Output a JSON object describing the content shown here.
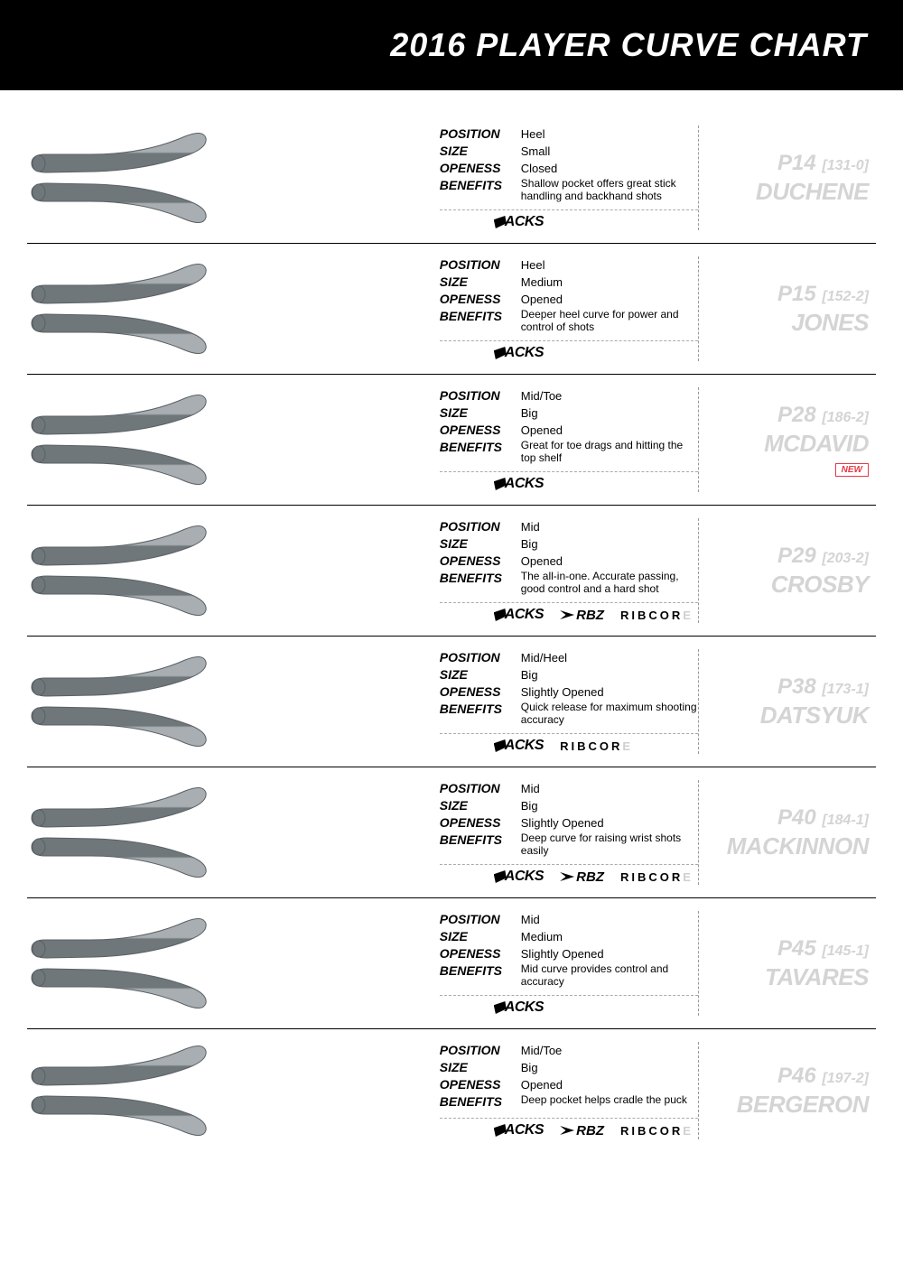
{
  "title": "2016  PLAYER CURVE CHART",
  "labels": {
    "position": "POSITION",
    "size": "SIZE",
    "openess": "OPENESS",
    "benefits": "BENEFITS"
  },
  "brand_names": {
    "tacks": "ACKS",
    "rbz": "RBZ",
    "ribcor": "RIBCOR",
    "ribcor_e": "E"
  },
  "new_text": "NEW",
  "colors": {
    "blade_top": "#a8aeb2",
    "blade_bottom": "#6f777b",
    "blade_stroke": "#5a6164",
    "name_text": "#d4d4d4",
    "new_badge": "#e63946",
    "background": "#ffffff",
    "header_bg": "#000000"
  },
  "curves": [
    {
      "code": "P14",
      "paren": "[131-0]",
      "player": "DUCHENE",
      "new": false,
      "position": "Heel",
      "size": "Small",
      "openess": "Closed",
      "benefits": "Shallow pocket offers great stick handling and backhand shots",
      "brands": [
        "tacks"
      ]
    },
    {
      "code": "P15",
      "paren": "[152-2]",
      "player": "JONES",
      "new": false,
      "position": "Heel",
      "size": "Medium",
      "openess": "Opened",
      "benefits": "Deeper heel curve for power and control of shots",
      "brands": [
        "tacks"
      ]
    },
    {
      "code": "P28",
      "paren": "[186-2]",
      "player": "MCDAVID",
      "new": true,
      "position": "Mid/Toe",
      "size": "Big",
      "openess": "Opened",
      "benefits": "Great for toe drags and hitting the top shelf",
      "brands": [
        "tacks"
      ]
    },
    {
      "code": "P29",
      "paren": "[203-2]",
      "player": "CROSBY",
      "new": false,
      "position": "Mid",
      "size": "Big",
      "openess": "Opened",
      "benefits": "The all-in-one. Accurate passing, good control and a hard shot",
      "brands": [
        "tacks",
        "rbz",
        "ribcor"
      ]
    },
    {
      "code": "P38",
      "paren": "[173-1]",
      "player": "DATSYUK",
      "new": false,
      "position": "Mid/Heel",
      "size": "Big",
      "openess": "Slightly Opened",
      "benefits": "Quick release for maximum shooting accuracy",
      "brands": [
        "tacks",
        "ribcor"
      ]
    },
    {
      "code": "P40",
      "paren": "[184-1]",
      "player": "MACKINNON",
      "new": false,
      "position": "Mid",
      "size": "Big",
      "openess": "Slightly Opened",
      "benefits": "Deep curve for raising wrist shots easily",
      "brands": [
        "tacks",
        "rbz",
        "ribcor"
      ]
    },
    {
      "code": "P45",
      "paren": "[145-1]",
      "player": "TAVARES",
      "new": false,
      "position": "Mid",
      "size": "Medium",
      "openess": "Slightly Opened",
      "benefits": "Mid curve provides control and accuracy",
      "brands": [
        "tacks"
      ]
    },
    {
      "code": "P46",
      "paren": "[197-2]",
      "player": "BERGERON",
      "new": false,
      "position": "Mid/Toe",
      "size": "Big",
      "openess": "Opened",
      "benefits": "Deep pocket helps cradle the puck",
      "brands": [
        "tacks",
        "rbz",
        "ribcor"
      ]
    }
  ]
}
